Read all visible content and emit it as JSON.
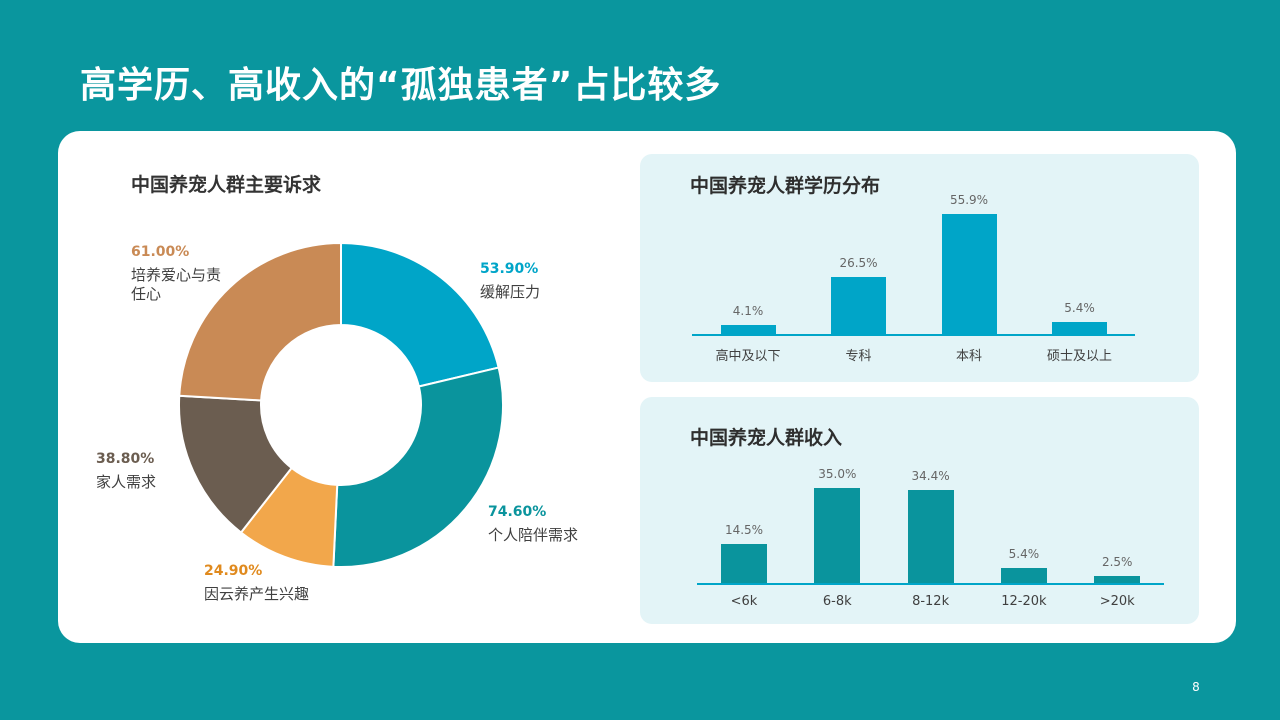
{
  "slide": {
    "title": "高学历、高收入的“孤独患者”占比较多",
    "page_number": "8",
    "colors": {
      "background": "#0a969e",
      "card": "#ffffff",
      "panel": "#e3f4f7",
      "education_bar": "#00a5c8",
      "income_bar": "#0a949d"
    }
  },
  "chart_data": [
    {
      "type": "pie",
      "variant": "donut",
      "title": "中国养宠人群主要诉求",
      "categories": [
        "缓解压力",
        "个人陪伴需求",
        "因云养产生兴趣",
        "家人需求",
        "培养爱心与责任心"
      ],
      "values": [
        53.9,
        74.6,
        24.9,
        38.8,
        61.0
      ],
      "labels": [
        "53.90%",
        "74.60%",
        "24.90%",
        "38.80%",
        "61.00%"
      ],
      "colors": [
        "#00a5c8",
        "#0a949d",
        "#f2a74b",
        "#6b5d50",
        "#c98a55"
      ],
      "start_angle": "12 o'clock, clockwise",
      "legend": "none (data labels beside segments)"
    },
    {
      "type": "bar",
      "title": "中国养宠人群学历分布",
      "categories": [
        "高中及以下",
        "专科",
        "本科",
        "硕士及以上"
      ],
      "values": [
        4.1,
        26.5,
        55.9,
        5.4
      ],
      "labels": [
        "4.1%",
        "26.5%",
        "55.9%",
        "5.4%"
      ],
      "xlabel": "",
      "ylabel": "",
      "ylim": [
        0,
        56
      ],
      "grid": false,
      "color": "#00a5c8"
    },
    {
      "type": "bar",
      "title": "中国养宠人群收入",
      "categories": [
        "<6k",
        "6-8k",
        "8-12k",
        "12-20k",
        ">20k"
      ],
      "values": [
        14.5,
        35.0,
        34.4,
        5.4,
        2.5
      ],
      "labels": [
        "14.5%",
        "35.0%",
        "34.4%",
        "5.4%",
        "2.5%"
      ],
      "xlabel": "",
      "ylabel": "",
      "ylim": [
        0,
        35
      ],
      "grid": false,
      "color": "#0a949d"
    }
  ]
}
